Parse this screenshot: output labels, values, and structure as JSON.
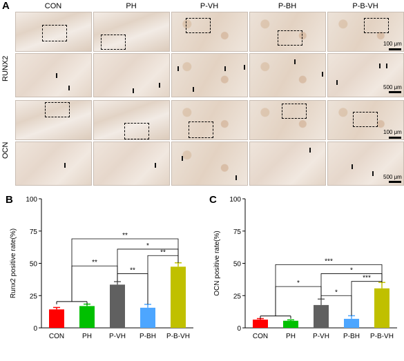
{
  "panel_a": {
    "letter": "A",
    "columns": [
      "CON",
      "PH",
      "P-VH",
      "P-BH",
      "P-B-VH"
    ],
    "rows": [
      "RUNX2",
      "OCN"
    ],
    "scale_top": "100 μm",
    "scale_bottom": "500 μm"
  },
  "chart_data": [
    {
      "letter": "B",
      "type": "bar",
      "categories": [
        "CON",
        "PH",
        "P-VH",
        "P-BH",
        "P-B-VH"
      ],
      "values": [
        14.3,
        16.9,
        33.5,
        15.6,
        47.4
      ],
      "errors": [
        1.5,
        1.5,
        2.3,
        2.6,
        3.0
      ],
      "colors": [
        "#ff0000",
        "#00c000",
        "#606060",
        "#4da6ff",
        "#c0c000"
      ],
      "ylabel": "Runx2 positive rate(%)",
      "ylim": [
        0,
        100
      ],
      "yticks": [
        "0",
        "25",
        "50",
        "75",
        "100"
      ],
      "significance": [
        {
          "label": "**",
          "from": "CON/PH",
          "to": "P-B-VH"
        },
        {
          "label": "*",
          "from": "P-VH",
          "to": "P-B-VH"
        },
        {
          "label": "**",
          "from": "P-BH",
          "to": "P-B-VH"
        },
        {
          "label": "**",
          "from": "CON/PH",
          "to": "P-VH"
        },
        {
          "label": "**",
          "from": "P-VH",
          "to": "P-BH"
        }
      ]
    },
    {
      "letter": "C",
      "type": "bar",
      "categories": [
        "CON",
        "PH",
        "P-VH",
        "P-BH",
        "P-B-VH"
      ],
      "values": [
        6.4,
        5.5,
        17.7,
        7.0,
        30.6
      ],
      "errors": [
        0.8,
        0.7,
        4.6,
        2.4,
        4.6
      ],
      "colors": [
        "#ff0000",
        "#00c000",
        "#606060",
        "#4da6ff",
        "#c0c000"
      ],
      "ylabel": "OCN positive rate(%)",
      "ylim": [
        0,
        100
      ],
      "yticks": [
        "0",
        "25",
        "50",
        "75",
        "100"
      ],
      "significance": [
        {
          "label": "***",
          "from": "CON/PH",
          "to": "P-B-VH"
        },
        {
          "label": "*",
          "from": "P-VH",
          "to": "P-B-VH"
        },
        {
          "label": "***",
          "from": "P-BH",
          "to": "P-B-VH"
        },
        {
          "label": "*",
          "from": "CON/PH",
          "to": "P-VH"
        },
        {
          "label": "*",
          "from": "P-VH",
          "to": "P-BH"
        }
      ]
    }
  ]
}
